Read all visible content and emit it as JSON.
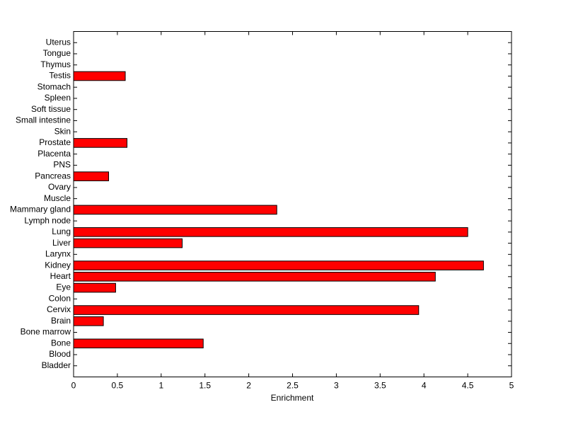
{
  "chart_data": {
    "type": "bar",
    "orientation": "horizontal",
    "xlabel": "Enrichment",
    "categories": [
      "Bladder",
      "Blood",
      "Bone",
      "Bone marrow",
      "Brain",
      "Cervix",
      "Colon",
      "Eye",
      "Heart",
      "Kidney",
      "Larynx",
      "Liver",
      "Lung",
      "Lymph node",
      "Mammary gland",
      "Muscle",
      "Ovary",
      "Pancreas",
      "PNS",
      "Placenta",
      "Prostate",
      "Skin",
      "Small intestine",
      "Soft tissue",
      "Spleen",
      "Stomach",
      "Testis",
      "Thymus",
      "Tongue",
      "Uterus"
    ],
    "values": [
      0,
      0,
      1.48,
      0,
      0.34,
      3.94,
      0,
      0.48,
      4.13,
      4.68,
      0,
      1.24,
      4.5,
      0,
      2.32,
      0,
      0,
      0.4,
      0,
      0,
      0.61,
      0,
      0,
      0,
      0,
      0,
      0.59,
      0,
      0,
      0
    ],
    "color": "#ff0000",
    "xlim": [
      0,
      5
    ],
    "xticks": [
      0,
      0.5,
      1,
      1.5,
      2,
      2.5,
      3,
      3.5,
      4,
      4.5,
      5
    ]
  }
}
